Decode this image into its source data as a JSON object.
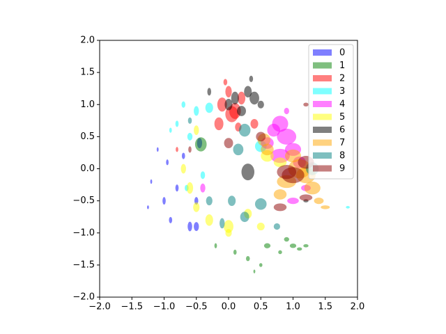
{
  "chart_data": {
    "type": "scatter",
    "alpha": 0.5,
    "legend": "upper right",
    "xlim": [
      -2,
      2
    ],
    "ylim": [
      -2,
      2
    ],
    "xticks": [
      {
        "value": -2,
        "label": "−2.0"
      },
      {
        "value": -1.5,
        "label": "−1.5"
      },
      {
        "value": -1,
        "label": "−1.0"
      },
      {
        "value": -0.5,
        "label": "−0.5"
      },
      {
        "value": 0,
        "label": "0.0"
      },
      {
        "value": 0.5,
        "label": "0.5"
      },
      {
        "value": 1,
        "label": "1.0"
      },
      {
        "value": 1.5,
        "label": "1.5"
      },
      {
        "value": 2,
        "label": "2.0"
      }
    ],
    "yticks": [
      {
        "value": -2,
        "label": "−2.0"
      },
      {
        "value": -1.5,
        "label": "−1.5"
      },
      {
        "value": -1,
        "label": "−1.0"
      },
      {
        "value": -0.5,
        "label": "−0.5"
      },
      {
        "value": 0,
        "label": "0.0"
      },
      {
        "value": 0.5,
        "label": "0.5"
      },
      {
        "value": 1,
        "label": "1.0"
      },
      {
        "value": 1.5,
        "label": "1.5"
      },
      {
        "value": 2,
        "label": "2.0"
      }
    ],
    "series": [
      {
        "name": "0",
        "color": "#0000ff",
        "x": [
          -1.2,
          -1.0,
          -0.95,
          -0.9,
          -1.1,
          -0.6,
          -0.5,
          -0.45,
          -0.8,
          -1.25,
          -0.7,
          -0.5
        ],
        "y": [
          -0.2,
          -0.5,
          0.1,
          -0.8,
          0.3,
          -0.9,
          -0.5,
          0.4,
          -0.3,
          -0.6,
          0.2,
          -0.9
        ],
        "widths": [
          0.03,
          0.05,
          0.04,
          0.05,
          0.03,
          0.07,
          0.06,
          0.08,
          0.05,
          0.03,
          0.05,
          0.08
        ],
        "heights": [
          0.07,
          0.12,
          0.09,
          0.1,
          0.07,
          0.15,
          0.12,
          0.16,
          0.11,
          0.06,
          0.1,
          0.14
        ]
      },
      {
        "name": "1",
        "color": "#008000",
        "x": [
          0.1,
          0.3,
          0.5,
          0.6,
          0.8,
          1.0,
          1.1,
          0.4,
          -0.2,
          0.9,
          1.2,
          -0.43
        ],
        "y": [
          -1.3,
          -1.4,
          -1.5,
          -1.2,
          -1.3,
          -1.2,
          -1.25,
          -1.6,
          -1.2,
          -1.1,
          -1.2,
          0.38
        ],
        "widths": [
          0.05,
          0.06,
          0.05,
          0.1,
          0.06,
          0.1,
          0.08,
          0.03,
          0.04,
          0.08,
          0.08,
          0.18
        ],
        "heights": [
          0.08,
          0.08,
          0.06,
          0.08,
          0.06,
          0.07,
          0.05,
          0.06,
          0.08,
          0.07,
          0.05,
          0.22
        ]
      },
      {
        "name": "2",
        "color": "#ff0000",
        "x": [
          -0.1,
          0.0,
          0.1,
          0.2,
          -0.15,
          0.05,
          -0.05,
          0.4,
          -0.8,
          0.15
        ],
        "y": [
          1.0,
          1.2,
          0.9,
          1.1,
          0.7,
          0.85,
          1.35,
          0.7,
          0.3,
          0.65
        ],
        "widths": [
          0.15,
          0.1,
          0.18,
          0.12,
          0.14,
          0.2,
          0.06,
          0.12,
          0.04,
          0.1
        ],
        "heights": [
          0.22,
          0.18,
          0.25,
          0.2,
          0.2,
          0.25,
          0.1,
          0.15,
          0.08,
          0.14
        ]
      },
      {
        "name": "3",
        "color": "#00ffff",
        "x": [
          -0.7,
          -0.8,
          -0.5,
          -0.3,
          0.5,
          -0.6,
          -0.9,
          1.85,
          -0.65,
          -0.4
        ],
        "y": [
          1.0,
          0.7,
          0.9,
          0.95,
          0.35,
          0.5,
          0.6,
          -0.6,
          -0.3,
          -0.1
        ],
        "widths": [
          0.06,
          0.05,
          0.08,
          0.12,
          0.18,
          0.08,
          0.04,
          0.06,
          0.06,
          0.07
        ],
        "heights": [
          0.1,
          0.1,
          0.15,
          0.16,
          0.18,
          0.12,
          0.08,
          0.04,
          0.1,
          0.12
        ]
      },
      {
        "name": "4",
        "color": "#ff00ff",
        "x": [
          0.8,
          0.7,
          0.9,
          1.0,
          0.8,
          1.1,
          0.6,
          1.0,
          0.9,
          -0.4,
          1.2
        ],
        "y": [
          0.7,
          0.6,
          0.5,
          0.3,
          0.2,
          0.1,
          0.4,
          -0.5,
          0.9,
          -0.3,
          -0.3
        ],
        "widths": [
          0.25,
          0.2,
          0.3,
          0.25,
          0.3,
          0.2,
          0.2,
          0.18,
          0.08,
          0.08,
          0.15
        ],
        "heights": [
          0.25,
          0.2,
          0.25,
          0.2,
          0.22,
          0.18,
          0.18,
          0.1,
          0.1,
          0.14,
          0.1
        ]
      },
      {
        "name": "5",
        "color": "#ffff00",
        "x": [
          -0.5,
          -0.3,
          0.0,
          0.3,
          -0.6,
          -0.7,
          -0.5,
          0.5,
          0.0,
          0.8,
          0.6
        ],
        "y": [
          -0.6,
          -0.8,
          -0.9,
          -0.7,
          -0.3,
          0.0,
          0.6,
          -0.9,
          -1.0,
          0.1,
          0.2
        ],
        "widths": [
          0.1,
          0.12,
          0.15,
          0.12,
          0.1,
          0.08,
          0.08,
          0.12,
          0.1,
          0.2,
          0.2
        ],
        "heights": [
          0.15,
          0.18,
          0.2,
          0.15,
          0.18,
          0.15,
          0.15,
          0.12,
          0.12,
          0.15,
          0.18
        ]
      },
      {
        "name": "6",
        "color": "#000000",
        "x": [
          0.3,
          0.1,
          0.3,
          0.4,
          0.2,
          -0.3,
          0.5,
          0.0,
          1.2,
          0.35
        ],
        "y": [
          -0.05,
          1.1,
          1.2,
          1.1,
          0.9,
          1.2,
          1.0,
          1.0,
          -0.5,
          1.4
        ],
        "widths": [
          0.2,
          0.12,
          0.12,
          0.15,
          0.14,
          0.06,
          0.1,
          0.12,
          0.08,
          0.06
        ],
        "heights": [
          0.26,
          0.2,
          0.18,
          0.2,
          0.16,
          0.12,
          0.12,
          0.18,
          0.05,
          0.1
        ]
      },
      {
        "name": "7",
        "color": "#ffa500",
        "x": [
          1.1,
          1.3,
          0.9,
          1.0,
          0.6,
          1.4,
          1.2,
          0.8,
          0.55,
          1.5
        ],
        "y": [
          0.0,
          -0.3,
          -0.2,
          0.2,
          0.3,
          -0.5,
          -0.1,
          -0.4,
          0.45,
          -0.6
        ],
        "widths": [
          0.35,
          0.25,
          0.3,
          0.25,
          0.2,
          0.15,
          0.3,
          0.2,
          0.2,
          0.14
        ],
        "heights": [
          0.3,
          0.2,
          0.2,
          0.2,
          0.18,
          0.1,
          0.25,
          0.16,
          0.2,
          0.06
        ]
      },
      {
        "name": "8",
        "color": "#008080",
        "x": [
          0.25,
          0.15,
          0.5,
          0.25,
          -0.1,
          0.75,
          1.3,
          -0.6,
          0.05,
          -0.3
        ],
        "y": [
          0.6,
          0.3,
          -0.55,
          -0.75,
          -0.85,
          -0.9,
          0.0,
          0.75,
          -0.5,
          -0.5
        ],
        "widths": [
          0.18,
          0.16,
          0.18,
          0.14,
          0.08,
          0.1,
          0.2,
          0.06,
          0.12,
          0.1
        ],
        "heights": [
          0.2,
          0.18,
          0.18,
          0.16,
          0.16,
          0.1,
          0.2,
          0.1,
          0.16,
          0.14
        ]
      },
      {
        "name": "9",
        "color": "#8b0000",
        "x": [
          0.0,
          0.9,
          1.2,
          1.2,
          0.8,
          -0.6,
          1.2,
          0.5,
          1.0
        ],
        "y": [
          0.4,
          -0.05,
          -0.45,
          0.1,
          -0.6,
          0.3,
          1.0,
          0.5,
          -0.1
        ],
        "widths": [
          0.14,
          0.3,
          0.2,
          0.25,
          0.2,
          0.05,
          0.08,
          0.15,
          0.35
        ],
        "heights": [
          0.16,
          0.22,
          0.1,
          0.2,
          0.12,
          0.1,
          0.06,
          0.15,
          0.25
        ]
      }
    ]
  }
}
